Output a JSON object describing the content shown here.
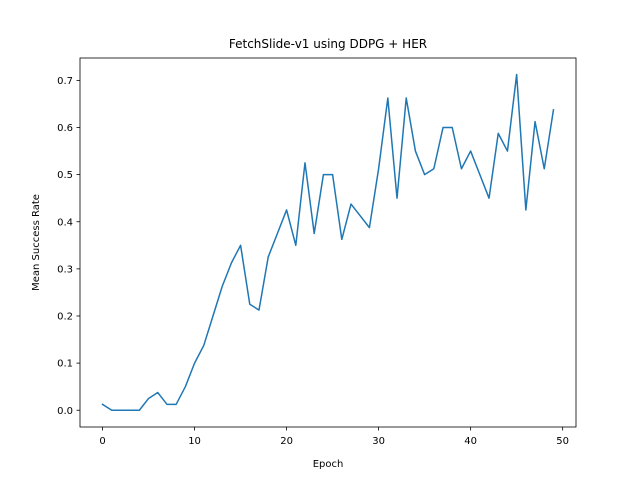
{
  "chart_data": {
    "type": "line",
    "title": "FetchSlide-v1 using DDPG + HER",
    "xlabel": "Epoch",
    "ylabel": "Mean Success Rate",
    "xlim": [
      -2.45,
      51.45
    ],
    "ylim": [
      -0.0356,
      0.7475
    ],
    "xticks": [
      0,
      10,
      20,
      30,
      40,
      50
    ],
    "xtick_labels": [
      "0",
      "10",
      "20",
      "30",
      "40",
      "50"
    ],
    "yticks": [
      0.0,
      0.1,
      0.2,
      0.3,
      0.4,
      0.5,
      0.6,
      0.7
    ],
    "ytick_labels": [
      "0.0",
      "0.1",
      "0.2",
      "0.3",
      "0.4",
      "0.5",
      "0.6",
      "0.7"
    ],
    "grid": false,
    "series": [
      {
        "color": "#1f77b4",
        "x": [
          0,
          1,
          2,
          3,
          4,
          5,
          6,
          7,
          8,
          9,
          10,
          11,
          12,
          13,
          14,
          15,
          16,
          17,
          18,
          19,
          20,
          21,
          22,
          23,
          24,
          25,
          26,
          27,
          28,
          29,
          30,
          31,
          32,
          33,
          34,
          35,
          36,
          37,
          38,
          39,
          40,
          41,
          42,
          43,
          44,
          45,
          46,
          47,
          48,
          49
        ],
        "y": [
          0.0125,
          0.0,
          0.0,
          0.0,
          0.0,
          0.025,
          0.0375,
          0.0125,
          0.0125,
          0.05,
          0.1,
          0.1375,
          0.2,
          0.2625,
          0.3125,
          0.35,
          0.225,
          0.2125,
          0.325,
          0.375,
          0.425,
          0.35,
          0.525,
          0.375,
          0.5,
          0.5,
          0.3625,
          0.4375,
          0.4125,
          0.3875,
          0.5125,
          0.6625,
          0.45,
          0.6625,
          0.55,
          0.5,
          0.5125,
          0.6,
          0.6,
          0.5125,
          0.55,
          0.5,
          0.45,
          0.5875,
          0.55,
          0.7125,
          0.425,
          0.6125,
          0.5125,
          0.6375
        ]
      }
    ]
  }
}
